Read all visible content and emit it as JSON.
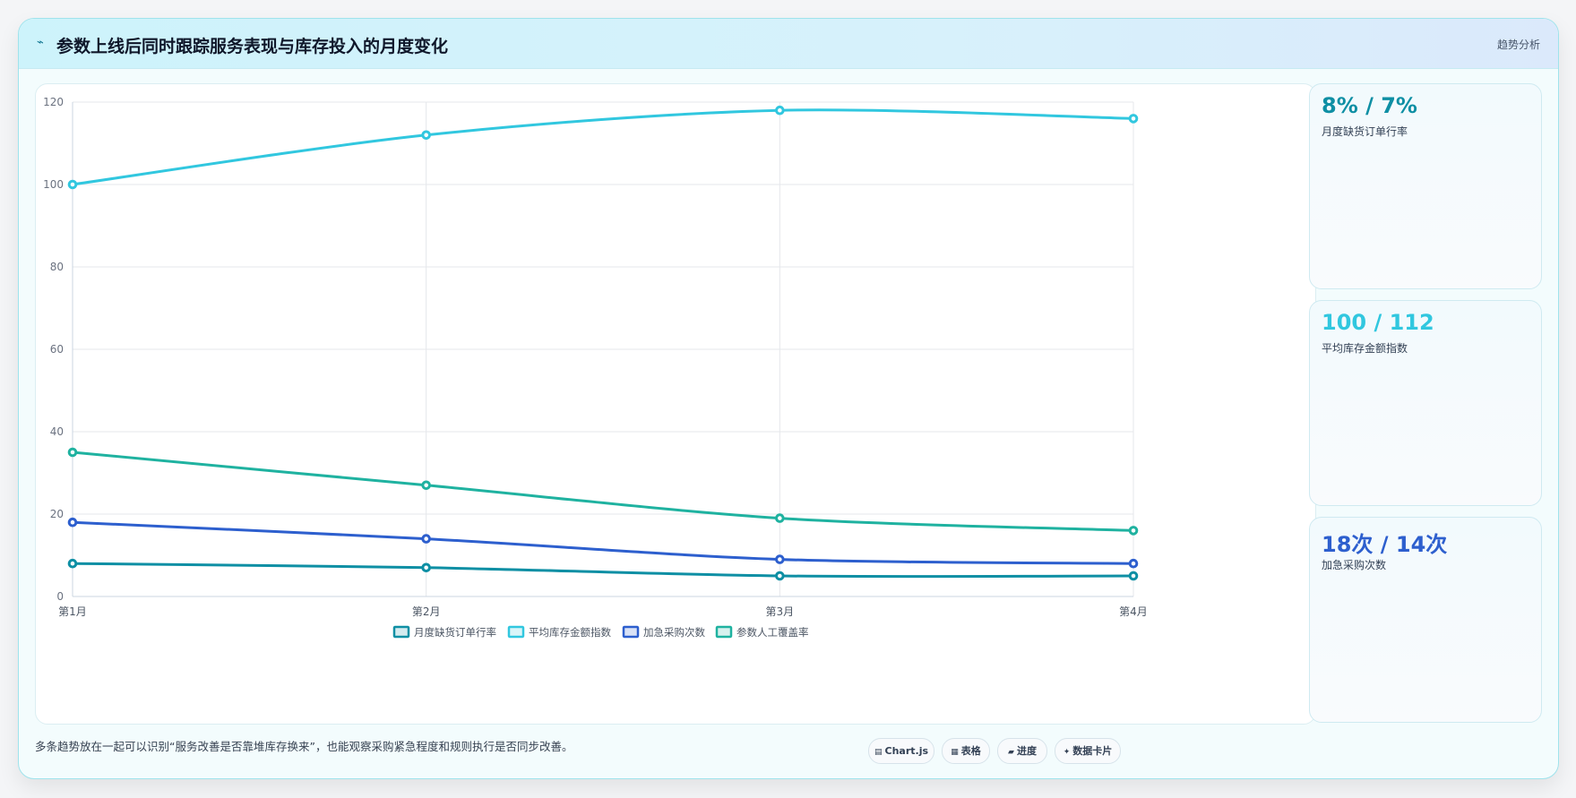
{
  "header": {
    "icon": "⌁",
    "title": "参数上线后同时跟踪服务表现与库存投入的月度变化",
    "tag": "趋势分析"
  },
  "chart_data": {
    "type": "line",
    "categories": [
      "第1月",
      "第2月",
      "第3月",
      "第4月"
    ],
    "ylim": [
      0,
      120
    ],
    "yticks": [
      0,
      20,
      40,
      60,
      80,
      100,
      120
    ],
    "grid": true,
    "legend_position": "bottom",
    "series": [
      {
        "name": "月度缺货订单行率",
        "values": [
          8,
          7,
          5,
          5
        ],
        "color": "#0e8fa4"
      },
      {
        "name": "平均库存金额指数",
        "values": [
          100,
          112,
          118,
          116
        ],
        "color": "#31c7df"
      },
      {
        "name": "加急采购次数",
        "values": [
          18,
          14,
          9,
          8
        ],
        "color": "#2d5fce"
      },
      {
        "name": "参数人工覆盖率",
        "values": [
          35,
          27,
          19,
          16
        ],
        "color": "#1fb2a0"
      }
    ]
  },
  "stats": [
    {
      "value": "8% / 7%",
      "label": "月度缺货订单行率",
      "color": "#0e8fa4"
    },
    {
      "value": "100 / 112",
      "label": "平均库存金额指数",
      "color": "#31c7df"
    },
    {
      "value": "18次 / 14次",
      "label": "加急采购次数",
      "color": "#2d5fce"
    }
  ],
  "footnote": "多条趋势放在一起可以识别“服务改善是否靠堆库存换来”，也能观察采购紧急程度和规则执行是否同步改善。",
  "pills": [
    {
      "icon": "▤",
      "label": "Chart.js"
    },
    {
      "icon": "▦",
      "label": "表格"
    },
    {
      "icon": "▰",
      "label": "进度"
    },
    {
      "icon": "✦",
      "label": "数据卡片"
    }
  ]
}
